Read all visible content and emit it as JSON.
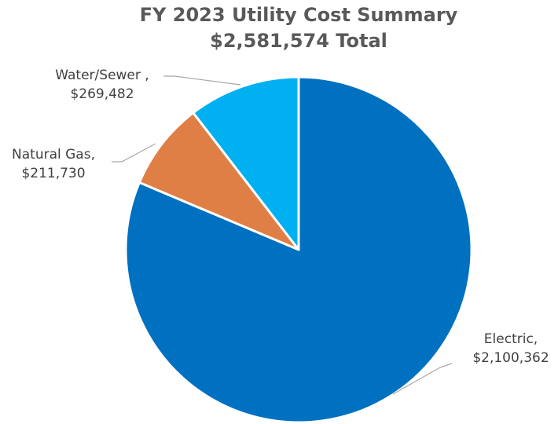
{
  "chart_data": {
    "type": "pie",
    "title": "FY 2023 Utility Cost Summary",
    "subtitle": "$2,581,574 Total",
    "categories": [
      "Electric,",
      "Natural Gas,",
      "Water/Sewer ,"
    ],
    "values": [
      2100362,
      211730,
      269482
    ],
    "value_labels": [
      "$2,100,362",
      "$211,730",
      "$269,482"
    ],
    "colors": [
      "#0070c0",
      "#e07f45",
      "#00b0f0"
    ]
  }
}
